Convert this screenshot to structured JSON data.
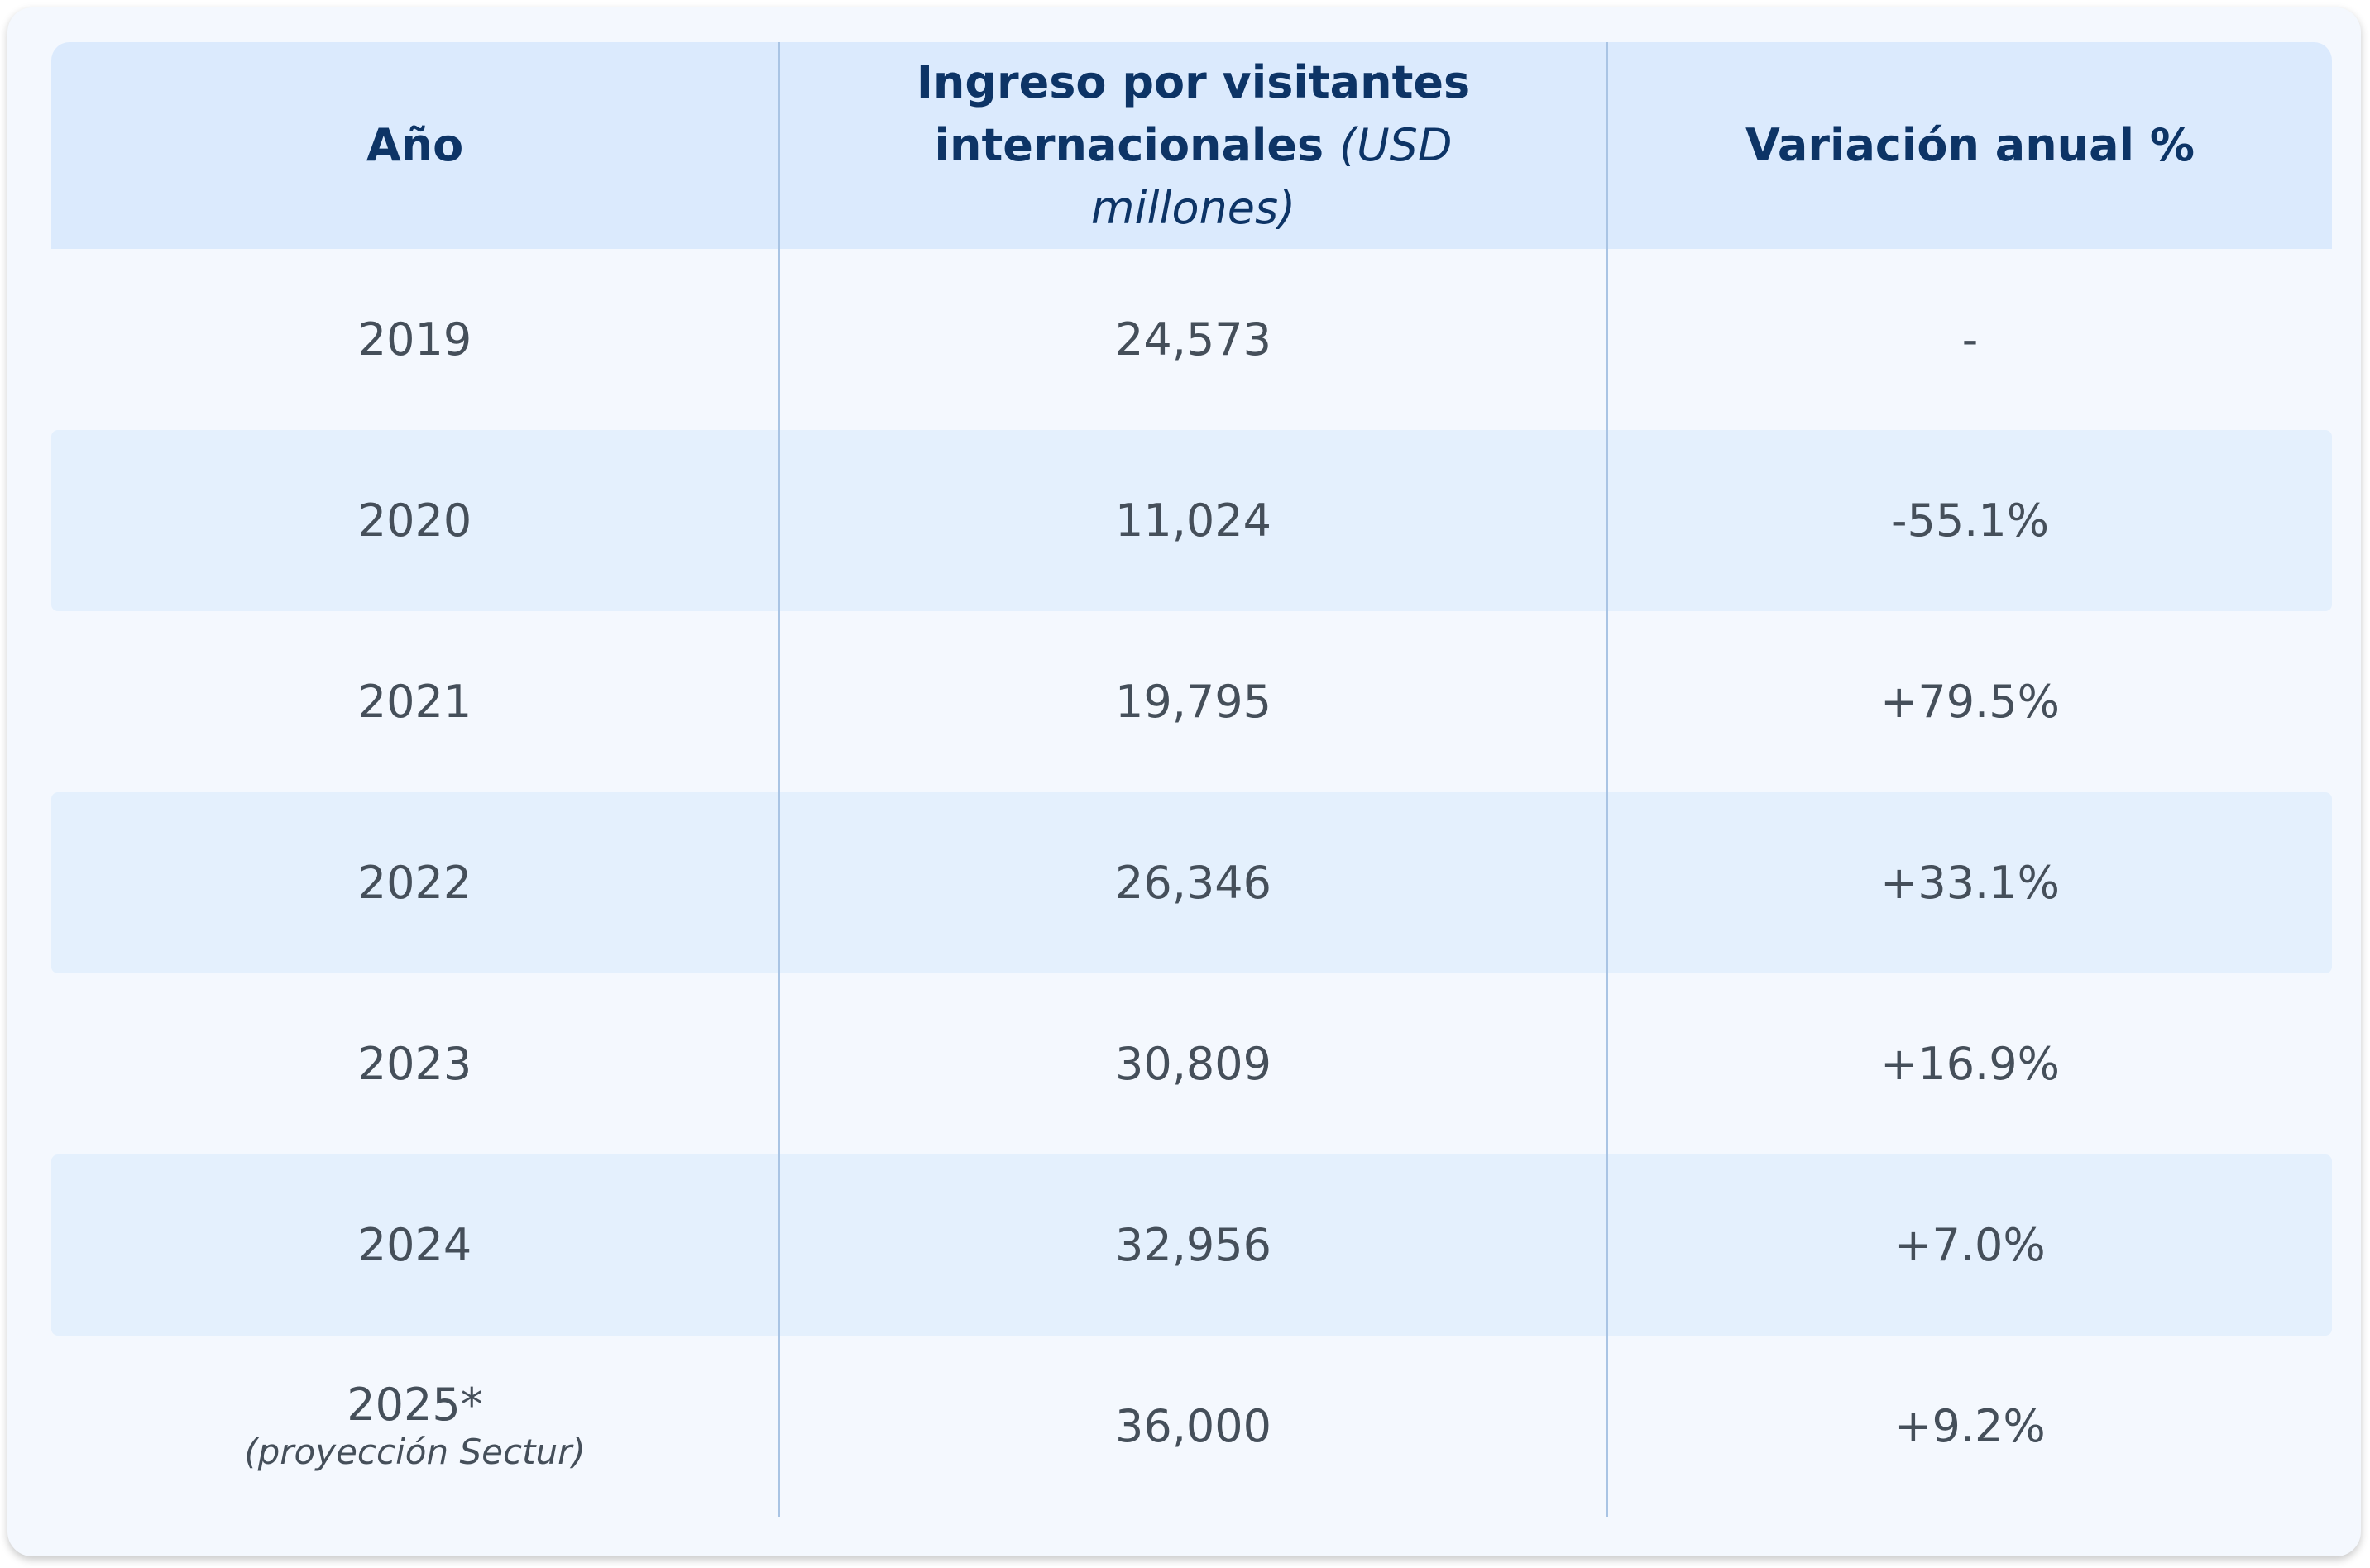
{
  "table": {
    "header": [
      {
        "text": "Año"
      },
      {
        "text": "Ingreso por visitantes internacionales",
        "note": "(USD millones)"
      },
      {
        "text": "Variación anual %"
      }
    ],
    "rows": [
      [
        {
          "text": "2019"
        },
        "24,573",
        "-"
      ],
      [
        {
          "text": "2020"
        },
        "11,024",
        "-55.1%"
      ],
      [
        {
          "text": "2021"
        },
        "19,795",
        "+79.5%"
      ],
      [
        {
          "text": "2022"
        },
        "26,346",
        "+33.1%"
      ],
      [
        {
          "text": "2023"
        },
        "30,809",
        "+16.9%"
      ],
      [
        {
          "text": "2024"
        },
        "32,956",
        "+7.0%"
      ],
      [
        {
          "text": "2025*",
          "note": "(proyección Sectur)"
        },
        "36,000",
        "+9.2%"
      ]
    ]
  }
}
